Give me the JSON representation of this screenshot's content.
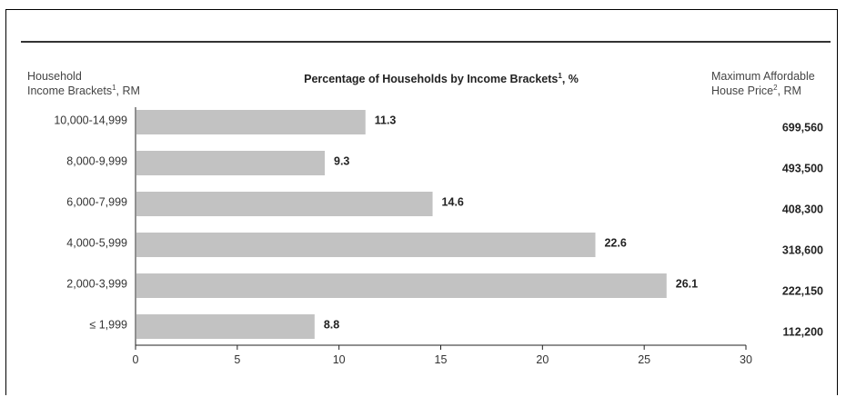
{
  "headers": {
    "left_line1": "Household",
    "left_line2": "Income Brackets",
    "left_sup": "1",
    "left_suffix": ", RM",
    "title_text": "Percentage of Households by Income Brackets",
    "title_sup": "1",
    "title_suffix": ", %",
    "right_line1": "Maximum Affordable",
    "right_line2": "House Price",
    "right_sup": "2",
    "right_suffix": ", RM"
  },
  "chart_data": {
    "type": "bar",
    "orientation": "horizontal",
    "title": "Percentage of Households by Income Brackets¹, %",
    "ylabel": "Household Income Brackets¹, RM",
    "categories": [
      "10,000-14,999",
      "8,000-9,999",
      "6,000-7,999",
      "4,000-5,999",
      "2,000-3,999",
      "≤ 1,999"
    ],
    "values": [
      11.3,
      9.3,
      14.6,
      22.6,
      26.1,
      8.8
    ],
    "value_labels": [
      "11.3",
      "9.3",
      "14.6",
      "22.6",
      "26.1",
      "8.8"
    ],
    "secondary_column": {
      "label": "Maximum Affordable House Price², RM",
      "values": [
        "699,560",
        "493,500",
        "408,300",
        "318,600",
        "222,150",
        "112,200"
      ]
    },
    "xlim": [
      0,
      30
    ],
    "xticks": [
      0,
      5,
      10,
      15,
      20,
      25,
      30
    ],
    "xtick_labels": [
      "0",
      "5",
      "10",
      "15",
      "20",
      "25",
      "30"
    ],
    "bar_color": "#c2c2c2",
    "grid": false,
    "legend": "none"
  }
}
